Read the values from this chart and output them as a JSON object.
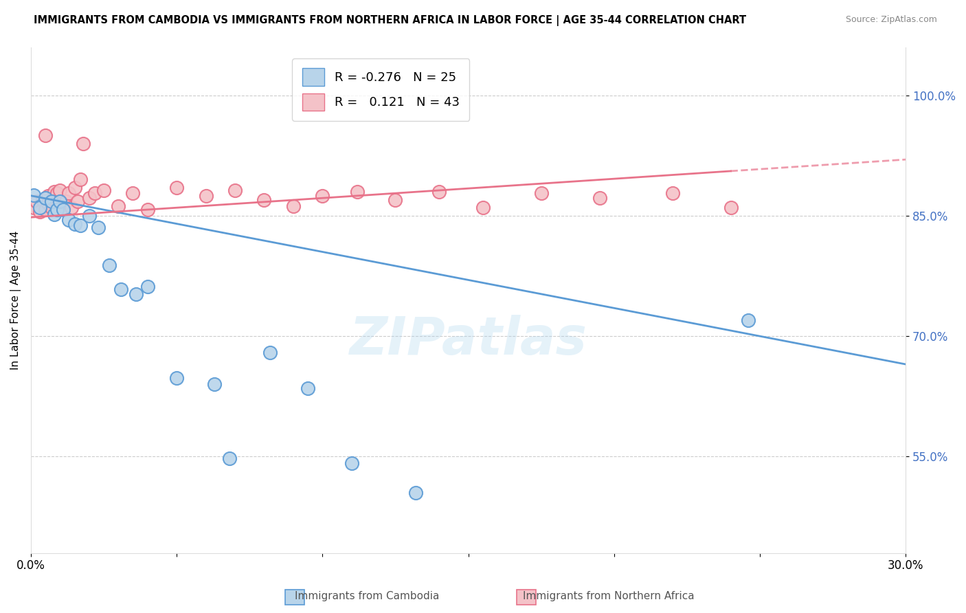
{
  "title": "IMMIGRANTS FROM CAMBODIA VS IMMIGRANTS FROM NORTHERN AFRICA IN LABOR FORCE | AGE 35-44 CORRELATION CHART",
  "source": "Source: ZipAtlas.com",
  "ylabel": "In Labor Force | Age 35-44",
  "xlim": [
    0.0,
    0.3
  ],
  "ylim": [
    0.43,
    1.06
  ],
  "yticks": [
    0.55,
    0.7,
    0.85,
    1.0
  ],
  "ytick_labels": [
    "55.0%",
    "70.0%",
    "85.0%",
    "100.0%"
  ],
  "xticks": [
    0.0,
    0.05,
    0.1,
    0.15,
    0.2,
    0.25,
    0.3
  ],
  "xtick_labels": [
    "0.0%",
    "",
    "",
    "",
    "",
    "",
    "30.0%"
  ],
  "cambodia_color": "#b8d4ea",
  "cambodia_edge_color": "#5b9bd5",
  "northern_africa_color": "#f4c2c8",
  "northern_africa_edge_color": "#e8738a",
  "legend_r_cambodia": "-0.276",
  "legend_n_cambodia": "25",
  "legend_r_northern_africa": "0.121",
  "legend_n_northern_africa": "43",
  "watermark": "ZIPatlas",
  "cambodia_x": [
    0.001,
    0.003,
    0.005,
    0.007,
    0.008,
    0.009,
    0.01,
    0.011,
    0.013,
    0.015,
    0.017,
    0.02,
    0.023,
    0.027,
    0.031,
    0.036,
    0.04,
    0.05,
    0.063,
    0.068,
    0.082,
    0.095,
    0.11,
    0.132,
    0.246
  ],
  "cambodia_y": [
    0.876,
    0.86,
    0.872,
    0.868,
    0.852,
    0.858,
    0.868,
    0.858,
    0.845,
    0.84,
    0.838,
    0.85,
    0.835,
    0.788,
    0.758,
    0.752,
    0.762,
    0.648,
    0.64,
    0.548,
    0.68,
    0.635,
    0.542,
    0.505,
    0.72
  ],
  "northern_africa_x": [
    0.001,
    0.002,
    0.003,
    0.004,
    0.005,
    0.006,
    0.006,
    0.007,
    0.008,
    0.008,
    0.009,
    0.009,
    0.01,
    0.01,
    0.011,
    0.012,
    0.013,
    0.014,
    0.015,
    0.016,
    0.017,
    0.018,
    0.02,
    0.022,
    0.025,
    0.03,
    0.035,
    0.04,
    0.05,
    0.06,
    0.07,
    0.08,
    0.09,
    0.1,
    0.112,
    0.125,
    0.14,
    0.155,
    0.175,
    0.195,
    0.22,
    0.24,
    0.005
  ],
  "northern_africa_y": [
    0.86,
    0.868,
    0.855,
    0.87,
    0.858,
    0.865,
    0.875,
    0.86,
    0.87,
    0.88,
    0.862,
    0.878,
    0.868,
    0.882,
    0.86,
    0.868,
    0.878,
    0.86,
    0.885,
    0.868,
    0.895,
    0.94,
    0.872,
    0.878,
    0.882,
    0.862,
    0.878,
    0.858,
    0.885,
    0.875,
    0.882,
    0.87,
    0.862,
    0.875,
    0.88,
    0.87,
    0.88,
    0.86,
    0.878,
    0.872,
    0.878,
    0.86,
    0.95
  ]
}
